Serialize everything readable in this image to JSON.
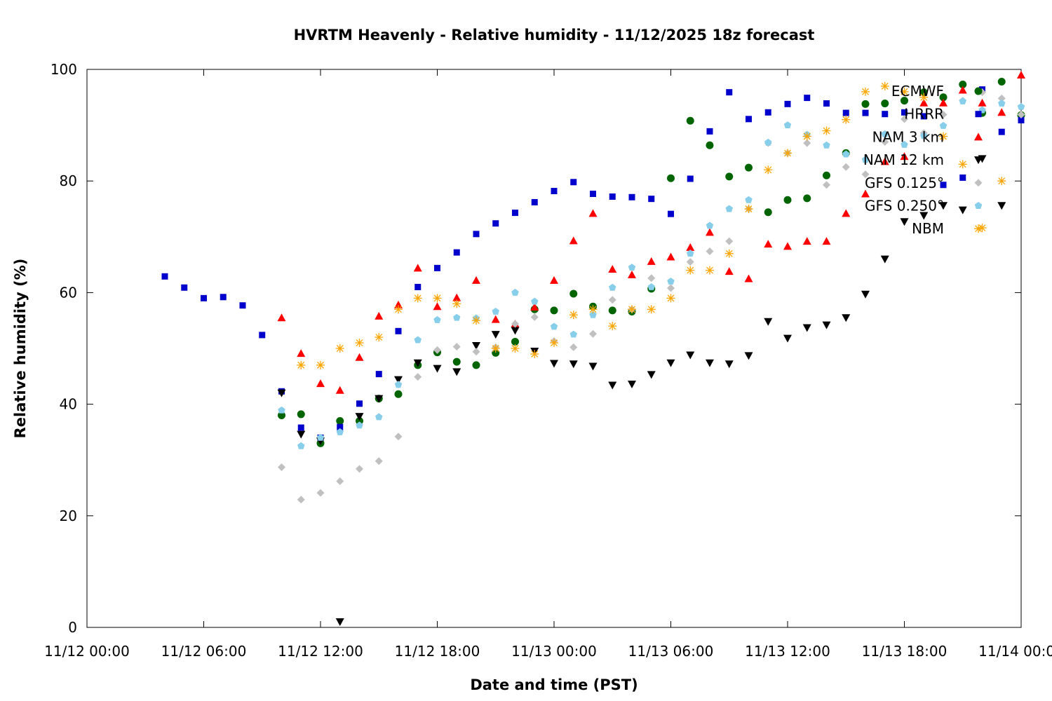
{
  "chart_data": {
    "type": "scatter",
    "title": "HVRTM Heavenly - Relative humidity - 11/12/2025 18z forecast",
    "xlabel": "Date and time (PST)",
    "ylabel": "Relative humidity (%)",
    "xlim_hours": [
      0,
      48
    ],
    "ylim": [
      0,
      100
    ],
    "x_ticks": [
      {
        "hours": 0,
        "label": "11/12 00:00"
      },
      {
        "hours": 6,
        "label": "11/12 06:00"
      },
      {
        "hours": 12,
        "label": "11/12 12:00"
      },
      {
        "hours": 18,
        "label": "11/12 18:00"
      },
      {
        "hours": 24,
        "label": "11/13 00:00"
      },
      {
        "hours": 30,
        "label": "11/13 06:00"
      },
      {
        "hours": 36,
        "label": "11/13 12:00"
      },
      {
        "hours": 42,
        "label": "11/13 18:00"
      },
      {
        "hours": 48,
        "label": "11/14 00:00"
      }
    ],
    "y_ticks": [
      0,
      20,
      40,
      60,
      80,
      100
    ],
    "legend_position": "top-right",
    "series": [
      {
        "name": "ECMWF",
        "color": "#006400",
        "marker": "circle",
        "x": [
          10,
          11,
          12,
          13,
          14,
          15,
          16,
          17,
          18,
          19,
          20,
          21,
          22,
          23,
          24,
          25,
          26,
          27,
          28,
          29,
          30,
          31,
          32,
          33,
          34,
          35,
          36,
          37,
          38,
          39,
          40,
          41,
          42,
          43,
          44,
          45,
          46,
          47,
          48
        ],
        "y": [
          38,
          38.2,
          33,
          37,
          37,
          41,
          41.8,
          47,
          49.3,
          47.6,
          47,
          49.2,
          51.2,
          57,
          56.8,
          59.8,
          57.5,
          56.8,
          56.6,
          60.7,
          80.5,
          90.8,
          86.4,
          80.8,
          82.4,
          74.4,
          76.6,
          76.9,
          81,
          85,
          93.8,
          93.9,
          94.4,
          95.9,
          95,
          97.3,
          92.2,
          97.8,
          91.8
        ]
      },
      {
        "name": "HRRR",
        "color": "#0000cd",
        "marker": "square",
        "x": [
          4,
          5,
          6,
          7,
          8,
          9,
          10,
          11,
          12,
          13,
          14,
          15,
          16,
          17,
          18,
          19,
          20,
          21,
          22,
          23,
          24,
          25,
          26,
          27,
          28,
          29,
          30,
          31,
          32,
          33,
          34,
          35,
          36,
          37,
          38,
          39,
          40,
          41,
          42,
          43,
          44,
          45,
          46,
          47,
          48
        ],
        "y": [
          62.9,
          60.9,
          59,
          59.2,
          57.7,
          52.4,
          42.3,
          35.8,
          34,
          35.9,
          40.1,
          45.4,
          53.1,
          61,
          64.4,
          67.2,
          70.5,
          72.4,
          74.3,
          76.2,
          78.2,
          79.8,
          77.7,
          77.2,
          77.1,
          76.8,
          74.1,
          80.4,
          88.9,
          95.9,
          91.1,
          92.3,
          93.8,
          94.9,
          93.9,
          92.2,
          92.2,
          92,
          92.3,
          91.6,
          79.3,
          80.6,
          96.4,
          88.8,
          90.9
        ]
      },
      {
        "name": "NAM 3 km",
        "color": "#ff0000",
        "marker": "triangle-up",
        "x": [
          10,
          11,
          12,
          13,
          14,
          15,
          16,
          17,
          18,
          19,
          20,
          21,
          22,
          23,
          24,
          25,
          26,
          27,
          28,
          29,
          30,
          31,
          32,
          33,
          34,
          35,
          36,
          37,
          38,
          39,
          40,
          41,
          42,
          43,
          44,
          45,
          46,
          47,
          48
        ],
        "y": [
          55.5,
          49.1,
          43.7,
          42.5,
          48.4,
          55.8,
          57.8,
          64.4,
          57.5,
          59.1,
          62.2,
          55.2,
          54.4,
          57.4,
          62.2,
          69.3,
          74.2,
          64.2,
          63.2,
          65.6,
          66.4,
          68.1,
          70.8,
          63.8,
          62.5,
          68.7,
          68.3,
          69.2,
          69.2,
          74.2,
          77.7,
          83.5,
          84.4,
          94,
          94,
          96.3,
          94,
          92.3,
          99
        ]
      },
      {
        "name": "NAM 12 km",
        "color": "#000000",
        "marker": "triangle-down",
        "x": [
          10,
          11,
          12,
          13,
          14,
          15,
          16,
          17,
          18,
          19,
          20,
          21,
          22,
          23,
          24,
          25,
          26,
          27,
          28,
          29,
          30,
          31,
          32,
          33,
          34,
          35,
          36,
          37,
          38,
          39,
          40,
          41,
          42,
          43,
          44,
          45,
          46,
          47
        ],
        "y": [
          42,
          34.6,
          33.4,
          1,
          37.8,
          41,
          44.4,
          47.4,
          46.4,
          45.8,
          50.5,
          52.5,
          53.2,
          49.5,
          47.3,
          47.2,
          46.8,
          43.4,
          43.6,
          45.3,
          47.4,
          48.8,
          47.4,
          47.2,
          48.7,
          54.8,
          51.8,
          53.7,
          54.2,
          55.5,
          59.7,
          66,
          72.7,
          73.8,
          75.6,
          74.8,
          84,
          75.6
        ]
      },
      {
        "name": "GFS 0.125°",
        "color": "#c0c0c0",
        "marker": "diamond",
        "x": [
          10,
          11,
          12,
          13,
          14,
          15,
          16,
          17,
          18,
          19,
          20,
          21,
          22,
          23,
          24,
          25,
          26,
          27,
          28,
          29,
          30,
          31,
          32,
          33,
          34,
          35,
          36,
          37,
          38,
          39,
          40,
          41,
          42,
          43,
          44,
          45,
          46,
          47,
          48
        ],
        "y": [
          28.7,
          22.9,
          24.1,
          26.2,
          28.4,
          29.8,
          34.2,
          44.9,
          49.7,
          50.3,
          49.4,
          50.2,
          54.4,
          55.6,
          51.3,
          50.2,
          52.6,
          58.7,
          57,
          62.6,
          60.8,
          65.5,
          67.4,
          69.2,
          75,
          86.8,
          85,
          86.8,
          79.3,
          82.5,
          81.2,
          87,
          91.1,
          88.6,
          91.9,
          94.4,
          95.9,
          94.8,
          91.9
        ]
      },
      {
        "name": "GFS 0.250°",
        "color": "#87ceeb",
        "marker": "pentagon",
        "x": [
          10,
          11,
          12,
          13,
          14,
          15,
          16,
          17,
          18,
          19,
          20,
          21,
          22,
          23,
          24,
          25,
          26,
          27,
          28,
          29,
          30,
          31,
          32,
          33,
          34,
          35,
          36,
          37,
          38,
          39,
          40,
          41,
          42,
          43,
          44,
          45,
          46,
          47,
          48
        ],
        "y": [
          38.9,
          32.5,
          34,
          35,
          36.2,
          37.7,
          43.5,
          51.5,
          55.1,
          55.5,
          55.4,
          56.6,
          60,
          58.4,
          53.9,
          52.5,
          56,
          60.9,
          64.5,
          61,
          62,
          67,
          72,
          75,
          76.6,
          86.9,
          90,
          88.3,
          86.4,
          84.8,
          83.8,
          88.4,
          86.5,
          88.1,
          89.9,
          94.3,
          92.7,
          93.9,
          93.3
        ]
      },
      {
        "name": "NBM",
        "color": "#ffa500",
        "marker": "asterisk",
        "x": [
          11,
          12,
          13,
          14,
          15,
          16,
          17,
          18,
          19,
          20,
          21,
          22,
          23,
          24,
          25,
          26,
          27,
          28,
          29,
          30,
          31,
          32,
          33,
          34,
          35,
          36,
          37,
          38,
          39,
          40,
          41,
          42,
          43,
          44,
          45,
          46,
          47
        ],
        "y": [
          47,
          47,
          50,
          51,
          52,
          57,
          59,
          59,
          58,
          55,
          50,
          50,
          49,
          51,
          56,
          57,
          54,
          57,
          57,
          59,
          64,
          64,
          67,
          75,
          82,
          85,
          88,
          89,
          91,
          96,
          97,
          96,
          95,
          88,
          83,
          71.6,
          80
        ]
      }
    ]
  }
}
